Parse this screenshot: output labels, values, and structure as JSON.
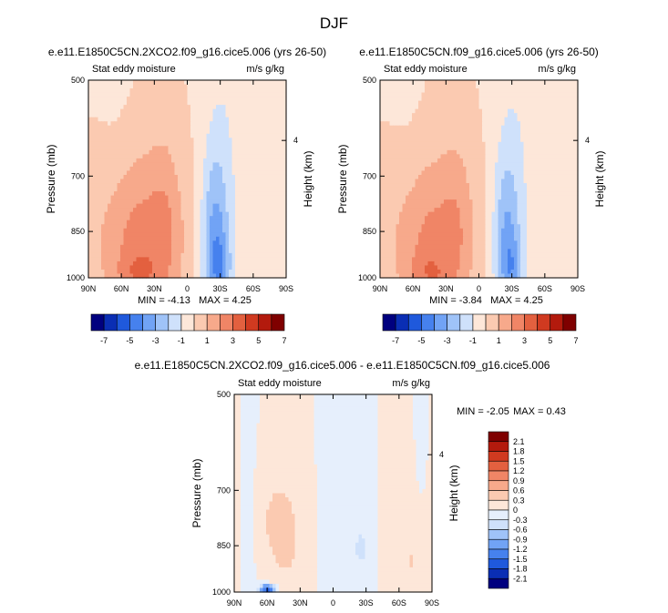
{
  "page_title": "DJF",
  "colors": {
    "top_scale": [
      "#00007f",
      "#0a2eb4",
      "#1f59dc",
      "#4681ee",
      "#71a3f5",
      "#9fc3f8",
      "#cfe1fb",
      "#fde7d9",
      "#fbcab1",
      "#f7a98b",
      "#f08566",
      "#e3603f",
      "#d03a20",
      "#b31a0d",
      "#7f0000"
    ],
    "diff_scale": [
      "#00007f",
      "#0a2eb4",
      "#1f59dc",
      "#4681ee",
      "#71a3f5",
      "#9fc3f8",
      "#cfe1fb",
      "#e6effc",
      "#fde7d9",
      "#fbcab1",
      "#f7a98b",
      "#f08566",
      "#e3603f",
      "#d03a20",
      "#b31a0d",
      "#7f0000"
    ]
  },
  "chart_data": [
    {
      "type": "heatmap",
      "title": "e.e11.E1850C5CN.2XCO2.f09_g16.cice5.006 (yrs 26-50)",
      "left_label": "Stat eddy moisture",
      "right_label": "m/s g/kg",
      "ylabel": "Pressure (mb)",
      "y2label": "Height (km)",
      "x_ticks": [
        "90N",
        "60N",
        "30N",
        "0",
        "30S",
        "60S",
        "90S"
      ],
      "y_ticks": [
        "500",
        "700",
        "850",
        "1000"
      ],
      "y2_ticks": [
        "4"
      ],
      "min_text": "MIN = -4.13",
      "max_text": "MAX =  4.25",
      "min": -4.13,
      "max": 4.25,
      "legend_ticks": [
        "-7",
        "-5",
        "-3",
        "-1",
        "1",
        "3",
        "5",
        "7"
      ],
      "legend_levels": [
        -7,
        -6,
        -5,
        -4,
        -3,
        -2,
        -1,
        0,
        1,
        2,
        3,
        4,
        5,
        6,
        7
      ],
      "field": {
        "background": 0.4,
        "bands": [
          {
            "lat": -40,
            "width": 12,
            "amp": -0.6
          },
          {
            "lat": 65,
            "width": 12,
            "amp": -0.3
          },
          {
            "lat": -75,
            "width": 4,
            "amp": -0.4
          }
        ],
        "blobs": [
          {
            "lat": 45,
            "p": 880,
            "slat": 28,
            "sp": 170,
            "amp": 2.6
          },
          {
            "lat": 20,
            "p": 820,
            "slat": 10,
            "sp": 180,
            "amp": 0.9
          },
          {
            "lat": -25,
            "p": 880,
            "slat": 9,
            "sp": 180,
            "amp": -3.3
          },
          {
            "lat": -30,
            "p": 960,
            "slat": 6,
            "sp": 60,
            "amp": -1.6
          },
          {
            "lat": 45,
            "p": 990,
            "slat": 14,
            "sp": 50,
            "amp": 1.3
          }
        ]
      }
    },
    {
      "type": "heatmap",
      "title": "e.e11.E1850C5CN.f09_g16.cice5.006 (yrs 26-50)",
      "left_label": "Stat eddy moisture",
      "right_label": "m/s g/kg",
      "ylabel": "Pressure (mb)",
      "y2label": "Height (km)",
      "x_ticks": [
        "90N",
        "60N",
        "30N",
        "0",
        "30S",
        "60S",
        "90S"
      ],
      "y_ticks": [
        "500",
        "700",
        "850",
        "1000"
      ],
      "y2_ticks": [
        "4"
      ],
      "min_text": "MIN = -3.84",
      "max_text": "MAX =  4.25",
      "min": -3.84,
      "max": 4.25,
      "legend_ticks": [
        "-7",
        "-5",
        "-3",
        "-1",
        "1",
        "3",
        "5",
        "7"
      ],
      "legend_levels": [
        -7,
        -6,
        -5,
        -4,
        -3,
        -2,
        -1,
        0,
        1,
        2,
        3,
        4,
        5,
        6,
        7
      ],
      "field": {
        "background": 0.4,
        "bands": [
          {
            "lat": -40,
            "width": 12,
            "amp": -0.6
          },
          {
            "lat": 65,
            "width": 12,
            "amp": -0.3
          },
          {
            "lat": -75,
            "width": 4,
            "amp": -0.4
          }
        ],
        "blobs": [
          {
            "lat": 45,
            "p": 880,
            "slat": 28,
            "sp": 170,
            "amp": 2.4
          },
          {
            "lat": 20,
            "p": 820,
            "slat": 10,
            "sp": 180,
            "amp": 0.8
          },
          {
            "lat": -25,
            "p": 880,
            "slat": 9,
            "sp": 180,
            "amp": -3.0
          },
          {
            "lat": -30,
            "p": 960,
            "slat": 6,
            "sp": 60,
            "amp": -1.3
          },
          {
            "lat": 45,
            "p": 990,
            "slat": 14,
            "sp": 50,
            "amp": 1.3
          }
        ]
      }
    },
    {
      "type": "heatmap",
      "title": "e.e11.E1850C5CN.2XCO2.f09_g16.cice5.006 - e.e11.E1850C5CN.f09_g16.cice5.006",
      "left_label": "Stat eddy moisture",
      "right_label": "m/s g/kg",
      "ylabel": "Pressure (mb)",
      "y2label": "Height (km)",
      "x_ticks": [
        "90N",
        "60N",
        "30N",
        "0",
        "30S",
        "60S",
        "90S"
      ],
      "y_ticks": [
        "500",
        "700",
        "850",
        "1000"
      ],
      "y2_ticks": [
        "4"
      ],
      "min_text": "MIN = -2.05",
      "max_text": "MAX =   0.43",
      "min": -2.05,
      "max": 0.43,
      "legend_ticks": [
        "2.1",
        "1.8",
        "1.5",
        "1.2",
        "0.9",
        "0.6",
        "0.3",
        "0",
        "-0.3",
        "-0.6",
        "-0.9",
        "-1.2",
        "-1.5",
        "-1.8",
        "-2.1"
      ],
      "legend_levels": [
        -2.1,
        -1.8,
        -1.5,
        -1.2,
        -0.9,
        -0.6,
        -0.3,
        0,
        0.3,
        0.6,
        0.9,
        1.2,
        1.5,
        1.8,
        2.1
      ],
      "field": {
        "background": 0.05,
        "bands": [
          {
            "lat": 76,
            "width": 6,
            "amp": -0.18
          },
          {
            "lat": 2,
            "width": 10,
            "amp": -0.15
          },
          {
            "lat": -25,
            "width": 12,
            "amp": -0.12
          },
          {
            "lat": -80,
            "width": 5,
            "amp": -0.12
          }
        ],
        "blobs": [
          {
            "lat": 60,
            "p": 990,
            "slat": 5,
            "sp": 12,
            "amp": -1.8
          },
          {
            "lat": 55,
            "p": 780,
            "slat": 15,
            "sp": 120,
            "amp": 0.25
          },
          {
            "lat": 40,
            "p": 850,
            "slat": 10,
            "sp": 120,
            "amp": 0.2
          },
          {
            "lat": -25,
            "p": 860,
            "slat": 4,
            "sp": 40,
            "amp": -0.35
          },
          {
            "lat": -75,
            "p": 900,
            "slat": 10,
            "sp": 120,
            "amp": 0.3
          }
        ]
      }
    }
  ]
}
